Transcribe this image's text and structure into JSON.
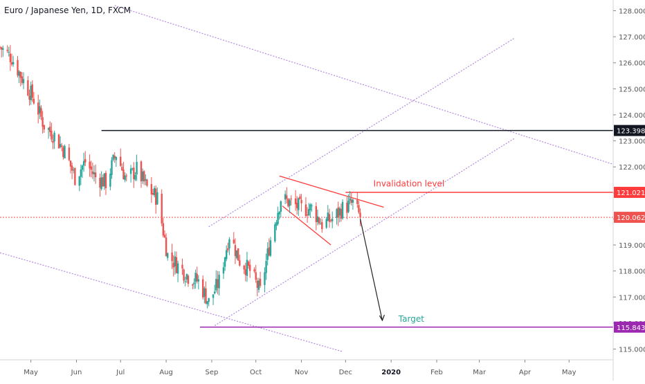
{
  "header": {
    "title": "Euro / Japanese Yen, 1D, FXCM"
  },
  "colors": {
    "up": "#26a69a",
    "down": "#ef5350",
    "black_line": "#131722",
    "channel": "#b388e0",
    "red_line": "#ff3b3b",
    "target": "#9c27b0",
    "axis_text": "#555555",
    "dashed_price": "#ef5350",
    "arrow": "#222222"
  },
  "chart_data": {
    "type": "candlestick",
    "title": "Euro / Japanese Yen, 1D, FXCM",
    "ylim": [
      114.8,
      128.2
    ],
    "y_ticks": [
      "115.000",
      "116.000",
      "117.000",
      "118.000",
      "119.000",
      "120.000",
      "121.000",
      "122.000",
      "123.000",
      "124.000",
      "125.000",
      "126.000",
      "127.000",
      "128.000"
    ],
    "y_tick_values": [
      115,
      116,
      117,
      118,
      119,
      120,
      121,
      122,
      123,
      124,
      125,
      126,
      127,
      128
    ],
    "x_labels": [
      "May",
      "Jun",
      "Jul",
      "Aug",
      "Sep",
      "Oct",
      "Nov",
      "Dec",
      "2020",
      "Feb",
      "Mar",
      "Apr",
      "May"
    ],
    "x_label_dates": [
      "2019-05-01",
      "2019-06-01",
      "2019-07-01",
      "2019-08-01",
      "2019-09-01",
      "2019-10-01",
      "2019-11-01",
      "2019-12-01",
      "2020-01-01",
      "2020-02-01",
      "2020-03-01",
      "2020-04-01",
      "2020-05-01"
    ],
    "xlim": [
      "2019-04-10",
      "2020-05-31"
    ],
    "series_keypoints": [
      {
        "date": "2019-04-10",
        "price": 126.6
      },
      {
        "date": "2019-04-18",
        "price": 126.2
      },
      {
        "date": "2019-04-26",
        "price": 125.3
      },
      {
        "date": "2019-05-03",
        "price": 124.6
      },
      {
        "date": "2019-05-10",
        "price": 123.6
      },
      {
        "date": "2019-05-17",
        "price": 123.2
      },
      {
        "date": "2019-05-24",
        "price": 122.6
      },
      {
        "date": "2019-05-31",
        "price": 121.6
      },
      {
        "date": "2019-06-07",
        "price": 122.2
      },
      {
        "date": "2019-06-14",
        "price": 121.6
      },
      {
        "date": "2019-06-21",
        "price": 121.4
      },
      {
        "date": "2019-06-28",
        "price": 122.5
      },
      {
        "date": "2019-07-05",
        "price": 121.5
      },
      {
        "date": "2019-07-12",
        "price": 121.9
      },
      {
        "date": "2019-07-19",
        "price": 121.2
      },
      {
        "date": "2019-07-26",
        "price": 120.8
      },
      {
        "date": "2019-08-02",
        "price": 118.6
      },
      {
        "date": "2019-08-09",
        "price": 118.2
      },
      {
        "date": "2019-08-16",
        "price": 117.8
      },
      {
        "date": "2019-08-23",
        "price": 117.6
      },
      {
        "date": "2019-08-30",
        "price": 116.8
      },
      {
        "date": "2019-09-06",
        "price": 117.6
      },
      {
        "date": "2019-09-13",
        "price": 119.4
      },
      {
        "date": "2019-09-20",
        "price": 118.4
      },
      {
        "date": "2019-09-27",
        "price": 118.0
      },
      {
        "date": "2019-10-04",
        "price": 117.2
      },
      {
        "date": "2019-10-11",
        "price": 119.2
      },
      {
        "date": "2019-10-18",
        "price": 120.8
      },
      {
        "date": "2019-10-25",
        "price": 120.6
      },
      {
        "date": "2019-11-01",
        "price": 120.4
      },
      {
        "date": "2019-11-08",
        "price": 120.4
      },
      {
        "date": "2019-11-15",
        "price": 119.8
      },
      {
        "date": "2019-11-22",
        "price": 120.0
      },
      {
        "date": "2019-11-29",
        "price": 120.4
      },
      {
        "date": "2019-12-06",
        "price": 120.6
      },
      {
        "date": "2019-12-11",
        "price": 120.06
      }
    ],
    "levels": [
      {
        "name": "resistance",
        "price": 123.398,
        "label": "123.398"
      },
      {
        "name": "invalidation",
        "price": 121.021,
        "label": "121.021"
      },
      {
        "name": "last",
        "price": 120.062,
        "label": "120.062"
      },
      {
        "name": "target",
        "price": 115.843,
        "label": "115.843"
      }
    ],
    "annotations": {
      "invalidation_text": "Invalidation level",
      "target_text": "Target"
    }
  }
}
